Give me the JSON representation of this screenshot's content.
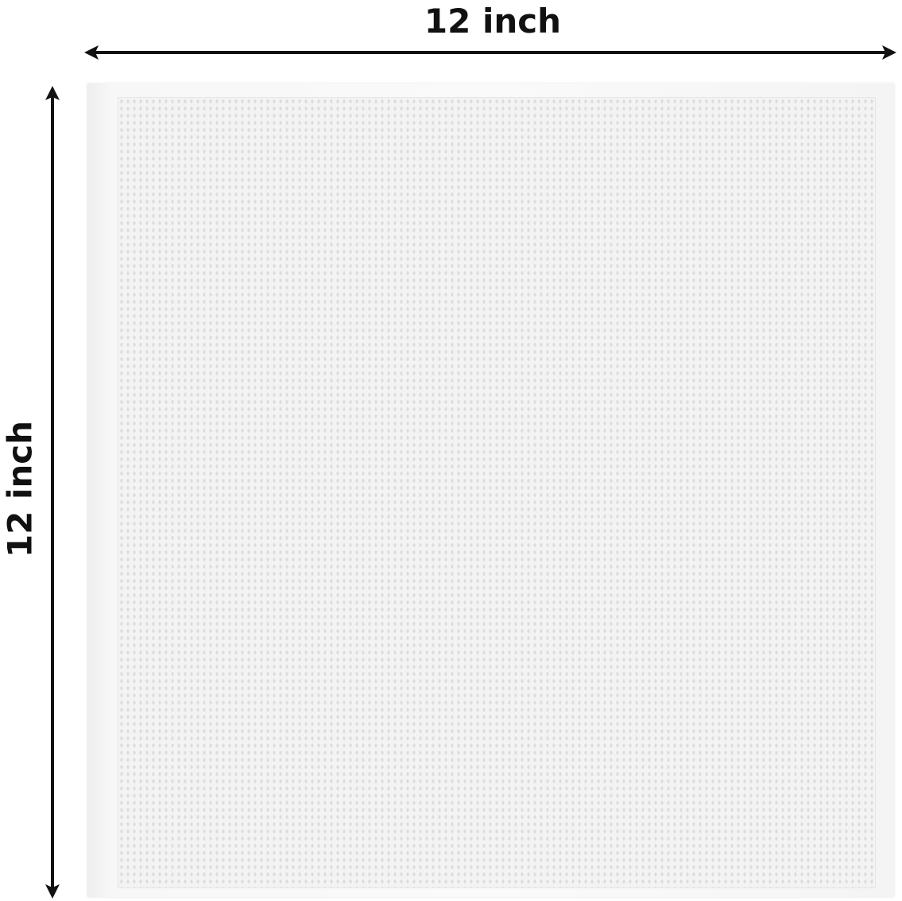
{
  "dimensions": {
    "width_label": "12 inch",
    "height_label": "12 inch"
  },
  "colors": {
    "text": "#111111",
    "arrow": "#111111",
    "cloth": "#f5f5f5"
  }
}
